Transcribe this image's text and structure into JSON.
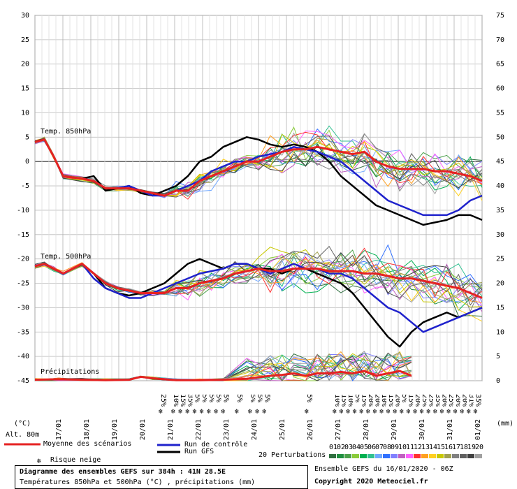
{
  "chart_data": {
    "type": "line",
    "title": "Diagramme des ensembles GEFS sur 384h : 41N 28.5E",
    "subtitle": "Températures 850hPa et 500hPa (°C) , précipitations (mm)",
    "left_axis": {
      "unit": "(°C)",
      "ticks": [
        30,
        25,
        20,
        15,
        10,
        5,
        0,
        -5,
        -10,
        -15,
        -20,
        -25,
        -30,
        -35,
        -40,
        -45
      ],
      "range": [
        -45,
        30
      ]
    },
    "right_axis": {
      "unit": "(mm)",
      "ticks": [
        75,
        70,
        65,
        60,
        55,
        50,
        45,
        40,
        35,
        30,
        25,
        20,
        15,
        10,
        5,
        0
      ],
      "range": [
        0,
        75
      ]
    },
    "altitude": "Alt. 80m",
    "x_ticks": [
      "17/01",
      "18/01",
      "19/01",
      "20/01",
      "21/01",
      "22/01",
      "23/01",
      "24/01",
      "25/01",
      "26/01",
      "27/01",
      "28/01",
      "29/01",
      "30/01",
      "31/01",
      "01/02"
    ],
    "x_range_days": [
      0,
      16
    ],
    "panel_labels": {
      "t850": "Temp. 850hPa",
      "t500": "Temp. 500hPa",
      "precip": "Précipitations"
    },
    "series": [
      {
        "name": "Moyenne des scénarios",
        "color": "#e52222",
        "t850": [
          [
            0,
            4
          ],
          [
            0.4,
            4.5
          ],
          [
            0.8,
            1
          ],
          [
            1.2,
            -3
          ],
          [
            2,
            -3.5
          ],
          [
            2.5,
            -4
          ],
          [
            3,
            -5.5
          ],
          [
            3.5,
            -5.5
          ],
          [
            4,
            -5.5
          ],
          [
            4.5,
            -6
          ],
          [
            5,
            -6.5
          ],
          [
            5.5,
            -7
          ],
          [
            6,
            -6
          ],
          [
            6.5,
            -6
          ],
          [
            7,
            -4
          ],
          [
            7.5,
            -3
          ],
          [
            8,
            -2
          ],
          [
            8.5,
            -1
          ],
          [
            9,
            0
          ],
          [
            9.5,
            0
          ],
          [
            10,
            1
          ],
          [
            10.5,
            2
          ],
          [
            11,
            2.5
          ],
          [
            11.5,
            2.5
          ],
          [
            12,
            3
          ],
          [
            12.5,
            2.5
          ],
          [
            13,
            2
          ],
          [
            13.5,
            1.5
          ],
          [
            14,
            2
          ],
          [
            14.5,
            0
          ],
          [
            15,
            -1
          ],
          [
            15.5,
            -1.5
          ],
          [
            16,
            -1.5
          ],
          [
            16.5,
            -1.5
          ],
          [
            17,
            -2
          ],
          [
            17.5,
            -2
          ],
          [
            18,
            -2.5
          ],
          [
            18.5,
            -3
          ],
          [
            19,
            -4
          ]
        ],
        "t500": [
          [
            0,
            -21.5
          ],
          [
            0.4,
            -21
          ],
          [
            0.8,
            -22
          ],
          [
            1.2,
            -23
          ],
          [
            2,
            -21
          ],
          [
            2.5,
            -23
          ],
          [
            3,
            -25
          ],
          [
            3.5,
            -26
          ],
          [
            4,
            -26.5
          ],
          [
            4.5,
            -27
          ],
          [
            5,
            -27
          ],
          [
            5.5,
            -27
          ],
          [
            6,
            -26
          ],
          [
            6.5,
            -26
          ],
          [
            7,
            -25
          ],
          [
            7.5,
            -24.5
          ],
          [
            8,
            -24
          ],
          [
            8.5,
            -23
          ],
          [
            9,
            -22.5
          ],
          [
            9.5,
            -22
          ],
          [
            10,
            -22.5
          ],
          [
            10.5,
            -22.5
          ],
          [
            11,
            -22
          ],
          [
            11.5,
            -22
          ],
          [
            12,
            -22
          ],
          [
            12.5,
            -22.5
          ],
          [
            13,
            -22.5
          ],
          [
            13.5,
            -22.5
          ],
          [
            14,
            -23
          ],
          [
            14.5,
            -23
          ],
          [
            15,
            -23.5
          ],
          [
            15.5,
            -24
          ],
          [
            16,
            -24
          ],
          [
            16.5,
            -24.5
          ],
          [
            17,
            -25
          ],
          [
            17.5,
            -25.5
          ],
          [
            18,
            -26
          ],
          [
            18.5,
            -27
          ],
          [
            19,
            -28
          ]
        ],
        "precip_mm": [
          [
            0,
            0.2
          ],
          [
            1,
            0.3
          ],
          [
            2,
            0.2
          ],
          [
            3,
            0.1
          ],
          [
            4,
            0.2
          ],
          [
            4.5,
            0.8
          ],
          [
            5,
            0.5
          ],
          [
            6,
            0.1
          ],
          [
            7,
            0.1
          ],
          [
            8,
            0.2
          ],
          [
            9,
            0.4
          ],
          [
            10,
            1
          ],
          [
            10.5,
            1.2
          ],
          [
            11,
            1.5
          ],
          [
            11.5,
            1
          ],
          [
            12,
            1.5
          ],
          [
            12.5,
            1.5
          ],
          [
            13,
            1.8
          ],
          [
            13.5,
            1.5
          ],
          [
            14,
            2
          ],
          [
            14.5,
            1
          ],
          [
            15,
            1.5
          ],
          [
            15.5,
            2
          ],
          [
            16,
            1
          ]
        ]
      },
      {
        "name": "Run de contrôle",
        "color": "#1f22cc",
        "t850": [
          [
            0,
            4
          ],
          [
            0.4,
            4.5
          ],
          [
            0.8,
            1
          ],
          [
            1.2,
            -3
          ],
          [
            2,
            -3.5
          ],
          [
            2.5,
            -4
          ],
          [
            3,
            -5.5
          ],
          [
            3.5,
            -5.5
          ],
          [
            4,
            -5
          ],
          [
            4.5,
            -6
          ],
          [
            5,
            -7
          ],
          [
            5.5,
            -7
          ],
          [
            6,
            -6
          ],
          [
            6.5,
            -5
          ],
          [
            7,
            -4
          ],
          [
            7.5,
            -2
          ],
          [
            8,
            -1
          ],
          [
            8.5,
            0
          ],
          [
            9,
            0
          ],
          [
            9.5,
            1
          ],
          [
            10,
            1.5
          ],
          [
            10.5,
            2
          ],
          [
            11,
            3
          ],
          [
            11.5,
            2.5
          ],
          [
            12,
            2
          ],
          [
            12.5,
            1
          ],
          [
            13,
            0
          ],
          [
            13.5,
            -2
          ],
          [
            14,
            -4
          ],
          [
            14.5,
            -6
          ],
          [
            15,
            -8
          ],
          [
            15.5,
            -9
          ],
          [
            16,
            -10
          ],
          [
            16.5,
            -11
          ],
          [
            17,
            -11
          ],
          [
            17.5,
            -11
          ],
          [
            18,
            -10
          ],
          [
            18.5,
            -8
          ],
          [
            19,
            -7
          ]
        ],
        "t500": [
          [
            0,
            -21.5
          ],
          [
            0.4,
            -21
          ],
          [
            0.8,
            -22
          ],
          [
            1.2,
            -23
          ],
          [
            2,
            -21
          ],
          [
            2.5,
            -24
          ],
          [
            3,
            -26
          ],
          [
            3.5,
            -27
          ],
          [
            4,
            -28
          ],
          [
            4.5,
            -28
          ],
          [
            5,
            -27
          ],
          [
            5.5,
            -26
          ],
          [
            6,
            -25
          ],
          [
            6.5,
            -24
          ],
          [
            7,
            -23
          ],
          [
            7.5,
            -22.5
          ],
          [
            8,
            -22
          ],
          [
            8.5,
            -21
          ],
          [
            9,
            -21
          ],
          [
            9.5,
            -22
          ],
          [
            10,
            -23
          ],
          [
            10.5,
            -22
          ],
          [
            11,
            -21
          ],
          [
            11.5,
            -22
          ],
          [
            12,
            -22
          ],
          [
            12.5,
            -23
          ],
          [
            13,
            -23
          ],
          [
            13.5,
            -24
          ],
          [
            14,
            -26
          ],
          [
            14.5,
            -28
          ],
          [
            15,
            -30
          ],
          [
            15.5,
            -31
          ],
          [
            16,
            -33
          ],
          [
            16.5,
            -35
          ],
          [
            17,
            -34
          ],
          [
            17.5,
            -33
          ],
          [
            18,
            -32
          ],
          [
            18.5,
            -31
          ],
          [
            19,
            -30
          ]
        ]
      },
      {
        "name": "Run GFS",
        "color": "#000000",
        "t850": [
          [
            0,
            4
          ],
          [
            0.4,
            4.5
          ],
          [
            0.8,
            1
          ],
          [
            1.2,
            -3
          ],
          [
            2,
            -3.5
          ],
          [
            2.5,
            -3
          ],
          [
            3,
            -6
          ],
          [
            3.5,
            -5.5
          ],
          [
            4,
            -5
          ],
          [
            4.5,
            -6.5
          ],
          [
            5,
            -7
          ],
          [
            5.5,
            -6
          ],
          [
            6,
            -5
          ],
          [
            6.5,
            -3
          ],
          [
            7,
            0
          ],
          [
            7.5,
            1
          ],
          [
            8,
            3
          ],
          [
            8.5,
            4
          ],
          [
            9,
            5
          ],
          [
            9.5,
            4.5
          ],
          [
            10,
            3.5
          ],
          [
            10.5,
            3
          ],
          [
            11,
            3.5
          ],
          [
            11.5,
            3
          ],
          [
            12,
            2
          ],
          [
            12.5,
            0
          ],
          [
            13,
            -3
          ],
          [
            13.5,
            -5
          ],
          [
            14,
            -7
          ],
          [
            14.5,
            -9
          ],
          [
            15,
            -10
          ],
          [
            15.5,
            -11
          ],
          [
            16,
            -12
          ],
          [
            16.5,
            -13
          ],
          [
            17,
            -12.5
          ],
          [
            17.5,
            -12
          ],
          [
            18,
            -11
          ],
          [
            18.5,
            -11
          ],
          [
            19,
            -12
          ]
        ],
        "t500": [
          [
            0,
            -21.5
          ],
          [
            0.4,
            -21
          ],
          [
            0.8,
            -22
          ],
          [
            1.2,
            -23
          ],
          [
            2,
            -21
          ],
          [
            2.5,
            -23
          ],
          [
            3,
            -26
          ],
          [
            3.5,
            -27
          ],
          [
            4,
            -27.5
          ],
          [
            4.5,
            -27
          ],
          [
            5,
            -26
          ],
          [
            5.5,
            -25
          ],
          [
            6,
            -23
          ],
          [
            6.5,
            -21
          ],
          [
            7,
            -20
          ],
          [
            7.5,
            -21
          ],
          [
            8,
            -22
          ],
          [
            8.5,
            -21
          ],
          [
            9,
            -21
          ],
          [
            9.5,
            -22
          ],
          [
            10,
            -22
          ],
          [
            10.5,
            -23
          ],
          [
            11,
            -22
          ],
          [
            11.5,
            -22
          ],
          [
            12,
            -23
          ],
          [
            12.5,
            -24
          ],
          [
            13,
            -25
          ],
          [
            13.5,
            -27
          ],
          [
            14,
            -30
          ],
          [
            14.5,
            -33
          ],
          [
            15,
            -36
          ],
          [
            15.5,
            -38
          ],
          [
            16,
            -35
          ],
          [
            16.5,
            -33
          ],
          [
            17,
            -32
          ],
          [
            17.5,
            -31
          ],
          [
            18,
            -32
          ],
          [
            18.5,
            -31
          ],
          [
            19,
            -30
          ]
        ]
      }
    ],
    "snow_risk_labels": [
      "25%",
      "10%",
      "15%",
      "35%",
      "5%",
      "5%",
      "5%",
      "5%",
      "5%",
      "5%",
      "5%",
      "5%",
      "5%",
      "5%",
      "10%",
      "15%",
      "10%",
      "5%",
      "15%",
      "20%",
      "20%",
      "10%",
      "15%",
      "20%",
      "5%",
      "15%",
      "20%",
      "25%",
      "25%",
      "35%",
      "20%",
      "25%",
      "20%",
      "20%",
      "31%",
      "35%"
    ],
    "perturbation_colors": [
      "#2f6f3f",
      "#1f8f3f",
      "#4aa04a",
      "#8acc3a",
      "#00b050",
      "#30c090",
      "#70a8ff",
      "#3070ff",
      "#8080ff",
      "#c060c0",
      "#ff60ff",
      "#ff3030",
      "#ffa020",
      "#ffd020",
      "#c8c800",
      "#a0a050",
      "#808080",
      "#606060",
      "#404040",
      "#a0a0a0"
    ]
  },
  "legend": {
    "mean": "Moyenne des scénarios",
    "control": "Run de contrôle",
    "gfs": "Run GFS",
    "snow": "Risque neige",
    "perturbations": "20 Perturbations",
    "perturbation_numbers": [
      "01",
      "02",
      "03",
      "04",
      "05",
      "06",
      "07",
      "08",
      "09",
      "10",
      "11",
      "12",
      "13",
      "14",
      "15",
      "16",
      "17",
      "18",
      "19",
      "20"
    ]
  },
  "footer": {
    "title": "Diagramme des ensembles GEFS sur 384h : 41N 28.5E",
    "subtitle": "Températures 850hPa et 500hPa (°C) , précipitations (mm)",
    "ensemble": "Ensemble GEFS du 16/01/2020 - 06Z",
    "copyright": "Copyright 2020 Meteociel.fr"
  }
}
